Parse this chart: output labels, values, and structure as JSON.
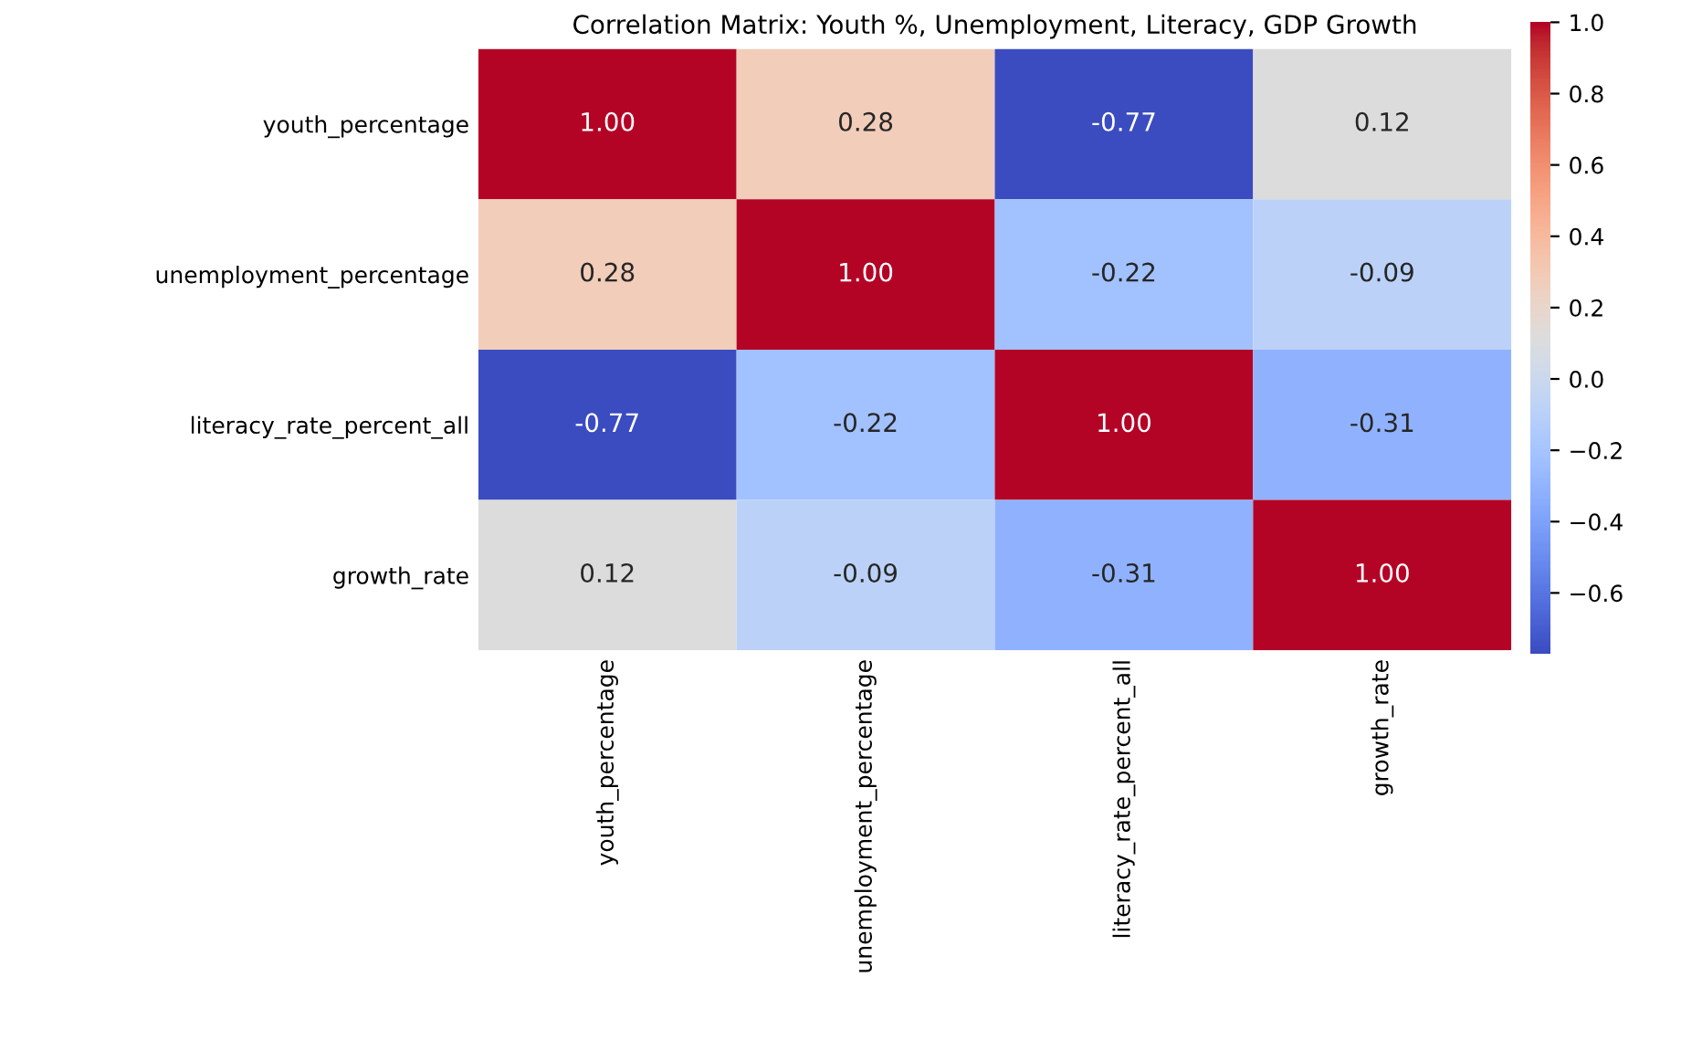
{
  "chart_data": {
    "type": "heatmap",
    "title": "Correlation Matrix: Youth %, Unemployment, Literacy, GDP Growth",
    "categories": [
      "youth_percentage",
      "unemployment_percentage",
      "literacy_rate_percent_all",
      "growth_rate"
    ],
    "y_categories": [
      "youth_percentage",
      "unemployment_percentage",
      "literacy_rate_percent_all",
      "growth_rate"
    ],
    "cells": [
      [
        1.0,
        0.28,
        -0.77,
        0.12
      ],
      [
        0.28,
        1.0,
        -0.22,
        -0.09
      ],
      [
        -0.77,
        -0.22,
        1.0,
        -0.31
      ],
      [
        0.12,
        -0.09,
        -0.31,
        1.0
      ]
    ],
    "cell_labels": [
      [
        "1.00",
        "0.28",
        "-0.77",
        "0.12"
      ],
      [
        "0.28",
        "1.00",
        "-0.22",
        "-0.09"
      ],
      [
        "-0.77",
        "-0.22",
        "1.00",
        "-0.31"
      ],
      [
        "0.12",
        "-0.09",
        "-0.31",
        "1.00"
      ]
    ],
    "clim": [
      -0.77,
      1.0
    ],
    "cticks": [
      {
        "value": -0.6,
        "label": "−0.6"
      },
      {
        "value": -0.4,
        "label": "−0.4"
      },
      {
        "value": -0.2,
        "label": "−0.2"
      },
      {
        "value": 0,
        "label": "0.0"
      },
      0.2,
      0.4,
      0.6,
      0.8,
      {
        "value": 1,
        "label": "1.0"
      }
    ]
  }
}
